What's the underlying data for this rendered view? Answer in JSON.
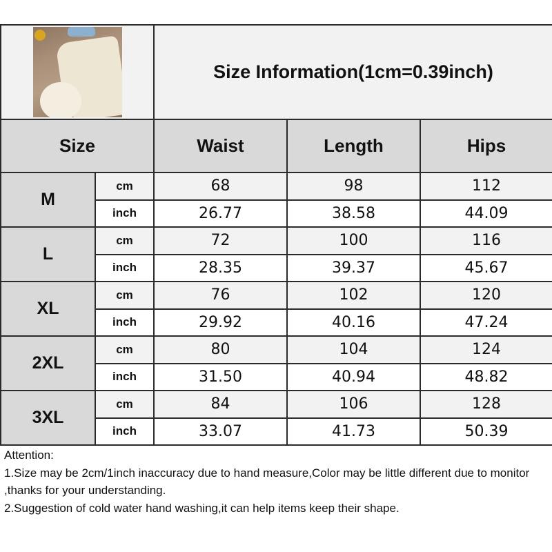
{
  "title": "Size Information(1cm=0.39inch)",
  "headers": {
    "size": "Size",
    "waist": "Waist",
    "length": "Length",
    "hips": "Hips"
  },
  "rows": [
    {
      "size": "M",
      "cm": {
        "unit": "cm",
        "waist": "68",
        "length": "98",
        "hips": "112"
      },
      "inch": {
        "unit": "inch",
        "waist": "26.77",
        "length": "38.58",
        "hips": "44.09"
      }
    },
    {
      "size": "L",
      "cm": {
        "unit": "cm",
        "waist": "72",
        "length": "100",
        "hips": "116"
      },
      "inch": {
        "unit": "inch",
        "waist": "28.35",
        "length": "39.37",
        "hips": "45.67"
      }
    },
    {
      "size": "XL",
      "cm": {
        "unit": "cm",
        "waist": "76",
        "length": "102",
        "hips": "120"
      },
      "inch": {
        "unit": "inch",
        "waist": "29.92",
        "length": "40.16",
        "hips": "47.24"
      }
    },
    {
      "size": "2XL",
      "cm": {
        "unit": "cm",
        "waist": "80",
        "length": "104",
        "hips": "124"
      },
      "inch": {
        "unit": "inch",
        "waist": "31.50",
        "length": "40.94",
        "hips": "48.82"
      }
    },
    {
      "size": "3XL",
      "cm": {
        "unit": "cm",
        "waist": "84",
        "length": "106",
        "hips": "128"
      },
      "inch": {
        "unit": "inch",
        "waist": "33.07",
        "length": "41.73",
        "hips": "50.39"
      }
    }
  ],
  "notes": [
    "Attention:",
    "1.Size may be 2cm/1inch inaccuracy due to hand measure,Color may be little different due to monitor ,thanks for your understanding.",
    "2.Suggestion of cold water hand washing,it can help items keep their shape."
  ]
}
